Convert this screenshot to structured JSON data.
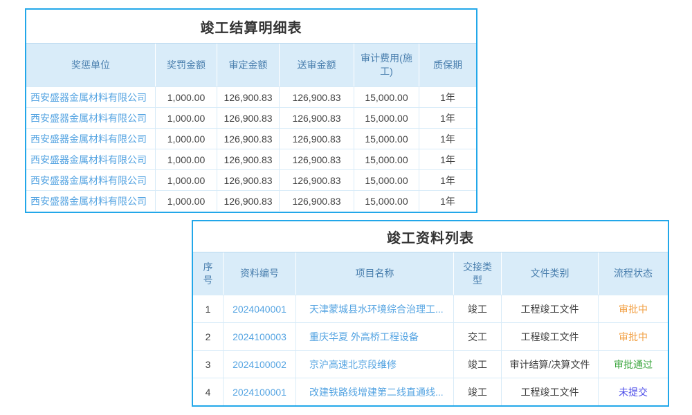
{
  "colors": {
    "card_border": "#22a7e9",
    "header_background": "#d9ecf9",
    "header_text": "#4a7fae",
    "link_blue": "#55a4e2",
    "status_pending_orange": "#f2a146",
    "status_approved_green": "#3aa53d",
    "status_not_submitted_blue": "#4848e8"
  },
  "settlement_table": {
    "title": "竣工结算明细表",
    "columns": [
      "奖惩单位",
      "奖罚金额",
      "审定金额",
      "送审金额",
      "审计费用(施工)",
      "质保期"
    ],
    "rows": [
      {
        "unit": "西安盛器金属材料有限公司",
        "penalty": "1,000.00",
        "audited": "126,900.83",
        "submitted": "126,900.83",
        "audit_fee": "15,000.00",
        "warranty": "1年"
      },
      {
        "unit": "西安盛器金属材料有限公司",
        "penalty": "1,000.00",
        "audited": "126,900.83",
        "submitted": "126,900.83",
        "audit_fee": "15,000.00",
        "warranty": "1年"
      },
      {
        "unit": "西安盛器金属材料有限公司",
        "penalty": "1,000.00",
        "audited": "126,900.83",
        "submitted": "126,900.83",
        "audit_fee": "15,000.00",
        "warranty": "1年"
      },
      {
        "unit": "西安盛器金属材料有限公司",
        "penalty": "1,000.00",
        "audited": "126,900.83",
        "submitted": "126,900.83",
        "audit_fee": "15,000.00",
        "warranty": "1年"
      },
      {
        "unit": "西安盛器金属材料有限公司",
        "penalty": "1,000.00",
        "audited": "126,900.83",
        "submitted": "126,900.83",
        "audit_fee": "15,000.00",
        "warranty": "1年"
      },
      {
        "unit": "西安盛器金属材料有限公司",
        "penalty": "1,000.00",
        "audited": "126,900.83",
        "submitted": "126,900.83",
        "audit_fee": "15,000.00",
        "warranty": "1年"
      }
    ]
  },
  "completion_table": {
    "title": "竣工资料列表",
    "columns": [
      "序号",
      "资料编号",
      "项目名称",
      "交接类型",
      "文件类别",
      "流程状态"
    ],
    "rows": [
      {
        "seq": "1",
        "doc_no": "2024040001",
        "project": "天津蒙城县水环境综合治理工...",
        "handover": "竣工",
        "category": "工程竣工文件",
        "status": "审批中"
      },
      {
        "seq": "2",
        "doc_no": "2024100003",
        "project": "重庆华夏 外高桥工程设备",
        "handover": "交工",
        "category": "工程竣工文件",
        "status": "审批中"
      },
      {
        "seq": "3",
        "doc_no": "2024100002",
        "project": "京沪高速北京段维修",
        "handover": "竣工",
        "category": "审计结算/决算文件",
        "status": "审批通过"
      },
      {
        "seq": "4",
        "doc_no": "2024100001",
        "project": "改建铁路线增建第二线直通线...",
        "handover": "竣工",
        "category": "工程竣工文件",
        "status": "未提交"
      }
    ]
  }
}
